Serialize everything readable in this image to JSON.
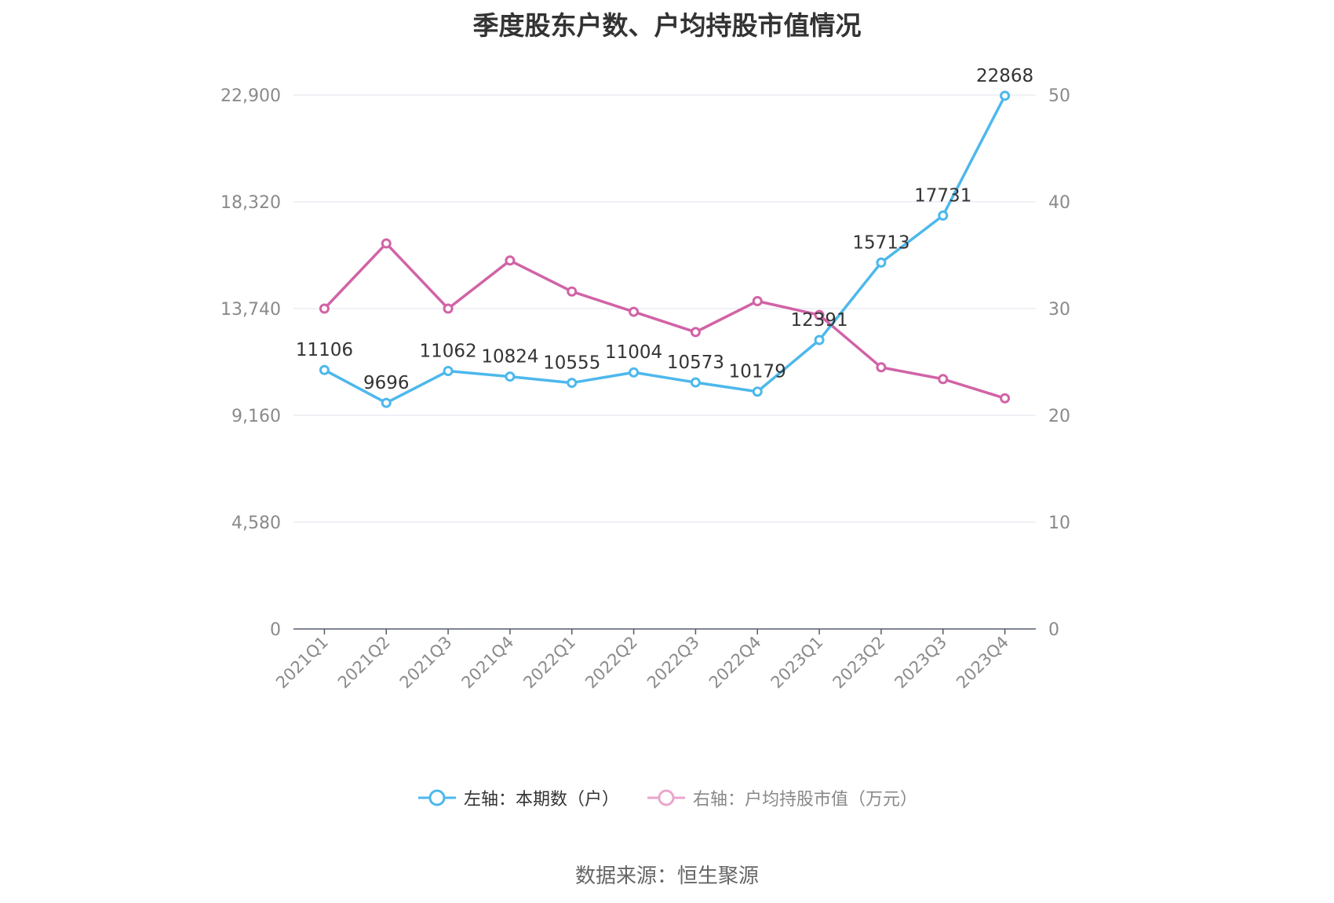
{
  "title": "季度股东户数、户均持股市值情况",
  "source": "数据来源：恒生聚源",
  "colors": {
    "left_series": "#4db8ec",
    "right_series": "#d163a6",
    "right_legend": "#e9a6ce",
    "grid": "#e0e3ee",
    "axis": "#555b6e",
    "tick_text": "#8a8a8a"
  },
  "chart_data": {
    "type": "line",
    "title": "季度股东户数、户均持股市值情况",
    "categories": [
      "2021Q1",
      "2021Q2",
      "2021Q3",
      "2021Q4",
      "2022Q1",
      "2022Q2",
      "2022Q3",
      "2022Q4",
      "2023Q1",
      "2023Q2",
      "2023Q3",
      "2023Q4"
    ],
    "left_axis": {
      "ticks": [
        0,
        4580,
        9160,
        13740,
        18320,
        22900
      ],
      "tick_labels": [
        "0",
        "4,580",
        "9,160",
        "13,740",
        "18,320",
        "22,900"
      ],
      "ylim": [
        0,
        22900
      ]
    },
    "right_axis": {
      "ticks": [
        0,
        10,
        20,
        30,
        40,
        50
      ],
      "tick_labels": [
        "0",
        "10",
        "20",
        "30",
        "40",
        "50"
      ],
      "ylim": [
        0,
        50
      ]
    },
    "series": [
      {
        "name": "左轴：本期数（户）",
        "axis": "left",
        "values": [
          11106,
          9696,
          11062,
          10824,
          10555,
          11004,
          10573,
          10179,
          12391,
          15713,
          17731,
          22868
        ],
        "labels": [
          "11106",
          "9696",
          "11062",
          "10824",
          "10555",
          "11004",
          "10573",
          "10179",
          "12391",
          "15713",
          "17731",
          "22868"
        ]
      },
      {
        "name": "右轴：户均持股市值（万元）",
        "axis": "right",
        "values": [
          30.0,
          36.1,
          30.0,
          34.5,
          31.6,
          29.7,
          27.8,
          30.7,
          29.4,
          24.5,
          23.4,
          21.6
        ]
      }
    ],
    "legend": "bottom"
  }
}
